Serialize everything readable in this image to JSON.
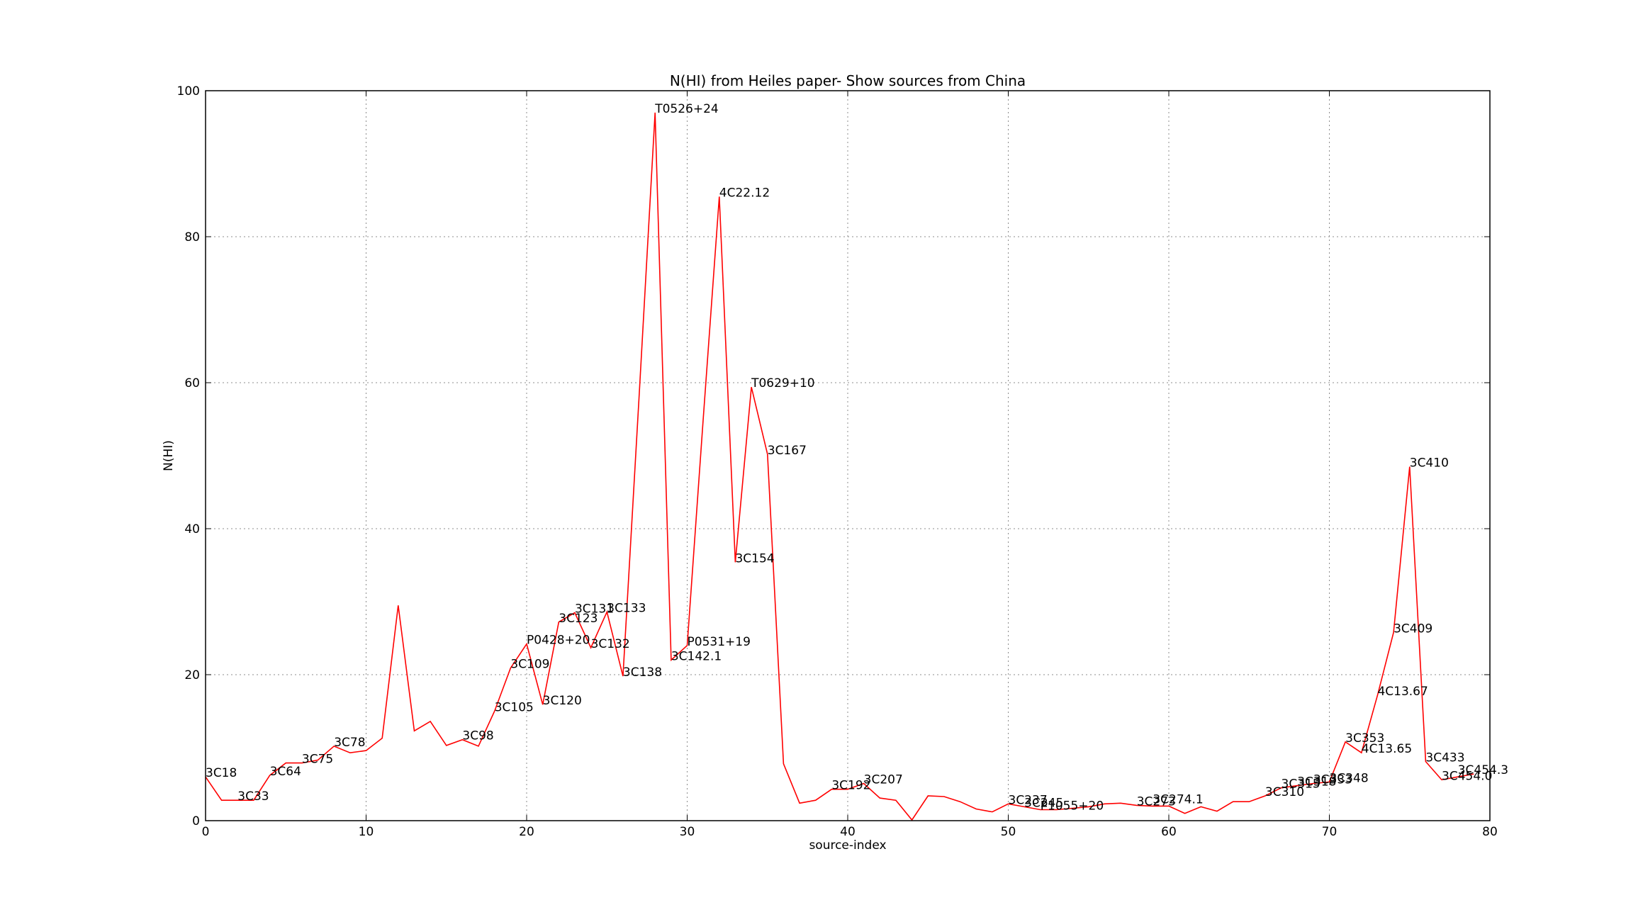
{
  "chart_data": {
    "type": "line",
    "title": "N(HI) from Heiles paper- Show sources from China",
    "xlabel": "source-index",
    "ylabel": "N(HI)",
    "xlim": [
      0,
      80
    ],
    "ylim": [
      0,
      100
    ],
    "xticks": [
      "0",
      "10",
      "20",
      "30",
      "40",
      "50",
      "60",
      "70",
      "80"
    ],
    "yticks": [
      "0",
      "20",
      "40",
      "60",
      "80",
      "100"
    ],
    "grid": true,
    "line_color": "#ff0000",
    "series": [
      {
        "x": [
          0,
          1,
          2,
          3,
          4,
          5,
          6,
          7,
          8,
          9,
          10,
          11,
          12,
          13,
          14,
          15,
          16,
          17,
          18,
          19,
          20,
          21,
          22,
          23,
          24,
          25,
          26,
          27,
          28,
          29,
          30,
          31,
          32,
          33,
          34,
          35,
          36,
          37,
          38,
          39,
          40,
          41,
          42,
          43,
          44,
          45,
          46,
          47,
          48,
          49,
          50,
          51,
          52,
          53,
          54,
          55,
          56,
          57,
          58,
          59,
          60,
          61,
          62,
          63,
          64,
          65,
          66,
          67,
          68,
          69,
          70,
          71,
          72,
          73,
          74,
          75,
          76,
          77,
          78,
          79
        ],
        "y": [
          6,
          2.8,
          2.8,
          2.8,
          6.2,
          7.9,
          7.9,
          8.3,
          10.2,
          9.3,
          9.6,
          11.3,
          29.5,
          12.3,
          13.6,
          10.3,
          11.1,
          10.2,
          15,
          20.9,
          24.2,
          15.9,
          27.2,
          28.5,
          23.7,
          28.6,
          19.8,
          58,
          97,
          22,
          24,
          55,
          85.5,
          35.4,
          59.4,
          50.2,
          7.8,
          2.4,
          2.8,
          4.3,
          4.3,
          5.1,
          3.1,
          2.8,
          0.1,
          3.4,
          3.3,
          2.6,
          1.6,
          1.2,
          2.3,
          1.9,
          1.5,
          1.5,
          1.7,
          1.9,
          2.3,
          2.4,
          2.1,
          2,
          2,
          1,
          1.9,
          1.3,
          2.6,
          2.6,
          3.4,
          4.5,
          4.8,
          5.1,
          5.3,
          10.8,
          9.3,
          17.2,
          25.8,
          48.5,
          8.1,
          5.6,
          6,
          6.4
        ]
      }
    ],
    "annotations": [
      {
        "text": "3C18",
        "x": 0,
        "y": 6
      },
      {
        "text": "3C33",
        "x": 2,
        "y": 2.8
      },
      {
        "text": "3C64",
        "x": 4,
        "y": 6.2
      },
      {
        "text": "3C75",
        "x": 6,
        "y": 7.9
      },
      {
        "text": "3C78",
        "x": 8,
        "y": 10.2
      },
      {
        "text": "3C98",
        "x": 16,
        "y": 11.1
      },
      {
        "text": "3C105",
        "x": 18,
        "y": 15
      },
      {
        "text": "3C109",
        "x": 19,
        "y": 20.9
      },
      {
        "text": "P0428+20",
        "x": 20,
        "y": 24.2
      },
      {
        "text": "3C120",
        "x": 21,
        "y": 15.9
      },
      {
        "text": "3C123",
        "x": 22,
        "y": 27.2
      },
      {
        "text": "3C131",
        "x": 23,
        "y": 28.5
      },
      {
        "text": "3C132",
        "x": 24,
        "y": 23.7
      },
      {
        "text": "3C133",
        "x": 25,
        "y": 28.6
      },
      {
        "text": "3C138",
        "x": 26,
        "y": 19.8
      },
      {
        "text": "T0526+24",
        "x": 28,
        "y": 97
      },
      {
        "text": "3C142.1",
        "x": 29,
        "y": 22
      },
      {
        "text": "P0531+19",
        "x": 30,
        "y": 24
      },
      {
        "text": "4C22.12",
        "x": 32,
        "y": 85.5
      },
      {
        "text": "3C154",
        "x": 33,
        "y": 35.4
      },
      {
        "text": "T0629+10",
        "x": 34,
        "y": 59.4
      },
      {
        "text": "3C167",
        "x": 35,
        "y": 50.2
      },
      {
        "text": "3C192",
        "x": 39,
        "y": 4.3
      },
      {
        "text": "3C207",
        "x": 41,
        "y": 5.1
      },
      {
        "text": "3C237",
        "x": 50,
        "y": 2.3
      },
      {
        "text": "3C245",
        "x": 51,
        "y": 1.9
      },
      {
        "text": "P1055+20",
        "x": 52,
        "y": 1.5
      },
      {
        "text": "3C273",
        "x": 58,
        "y": 2.1
      },
      {
        "text": "3C274.1",
        "x": 59,
        "y": 2.4
      },
      {
        "text": "3C310",
        "x": 66,
        "y": 3.4
      },
      {
        "text": "3C315",
        "x": 67,
        "y": 4.5
      },
      {
        "text": "3C318",
        "x": 68,
        "y": 4.8
      },
      {
        "text": "3C333",
        "x": 69,
        "y": 5.1
      },
      {
        "text": "3C348",
        "x": 70,
        "y": 5.3
      },
      {
        "text": "3C353",
        "x": 71,
        "y": 10.8
      },
      {
        "text": "4C13.65",
        "x": 72,
        "y": 9.3
      },
      {
        "text": "4C13.67",
        "x": 73,
        "y": 17.2
      },
      {
        "text": "3C409",
        "x": 74,
        "y": 25.8
      },
      {
        "text": "3C410",
        "x": 75,
        "y": 48.5
      },
      {
        "text": "3C433",
        "x": 76,
        "y": 8.1
      },
      {
        "text": "3C454.0",
        "x": 77,
        "y": 5.6
      },
      {
        "text": "3C454.3",
        "x": 78,
        "y": 6.4
      }
    ]
  }
}
